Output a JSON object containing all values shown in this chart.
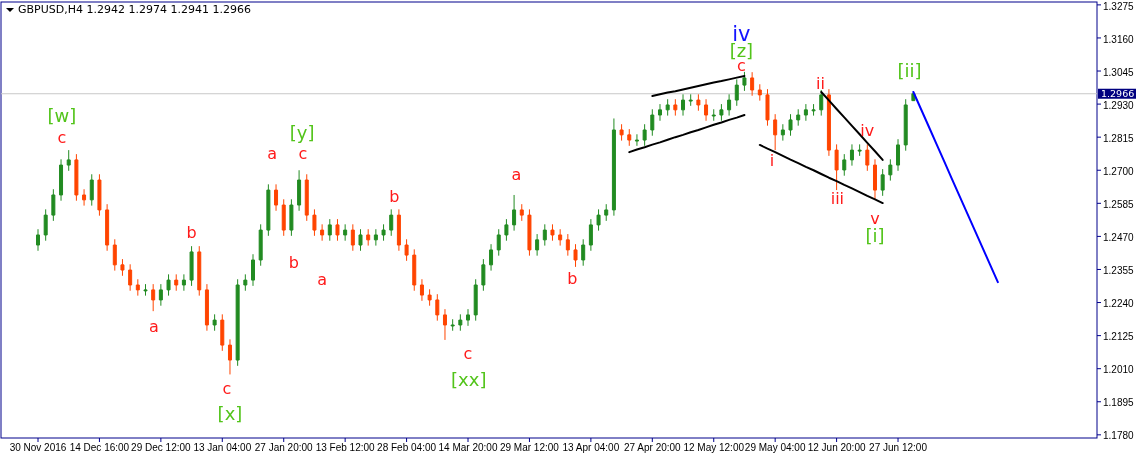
{
  "chart_data": {
    "type": "candlestick",
    "title": "GBPUSD,H4  1.2942 1.2974 1.2941 1.2966",
    "categories": [
      "30 Nov 2016",
      null,
      null,
      null,
      null,
      null,
      null,
      null,
      "14 Dec 16:00",
      null,
      null,
      null,
      null,
      null,
      null,
      null,
      "29 Dec 12:00",
      null,
      null,
      null,
      null,
      null,
      null,
      null,
      "13 Jan 04:00",
      null,
      null,
      null,
      null,
      null,
      null,
      null,
      "27 Jan 20:00",
      null,
      null,
      null,
      null,
      null,
      null,
      null,
      "13 Feb 12:00",
      null,
      null,
      null,
      null,
      null,
      null,
      null,
      "28 Feb 04:00",
      null,
      null,
      null,
      null,
      null,
      null,
      null,
      "14 Mar 20:00",
      null,
      null,
      null,
      null,
      null,
      null,
      null,
      "29 Mar 12:00",
      null,
      null,
      null,
      null,
      null,
      null,
      null,
      "13 Apr 04:00",
      null,
      null,
      null,
      null,
      null,
      null,
      null,
      "27 Apr 20:00",
      null,
      null,
      null,
      null,
      null,
      null,
      null,
      "12 May 12:00",
      null,
      null,
      null,
      null,
      null,
      null,
      null,
      "29 May 04:00",
      null,
      null,
      null,
      null,
      null,
      null,
      null,
      "12 Jun 20:00",
      null,
      null,
      null,
      null,
      null,
      null,
      null,
      "27 Jun 12:00",
      null,
      null,
      null,
      null,
      null,
      null,
      null,
      null,
      null,
      null,
      null,
      null,
      null,
      null,
      null,
      null,
      null,
      null,
      null,
      null,
      null,
      null,
      null,
      null,
      null
    ],
    "ohlc": [
      [
        1.244,
        1.2495,
        1.242,
        1.2475
      ],
      [
        1.2475,
        1.2564,
        1.2455,
        1.2544
      ],
      [
        1.2544,
        1.2634,
        1.2524,
        1.2614
      ],
      [
        1.2614,
        1.2738,
        1.2594,
        1.2718
      ],
      [
        1.2718,
        1.277,
        1.2698,
        1.2736
      ],
      [
        1.2736,
        1.2756,
        1.2594,
        1.2614
      ],
      [
        1.2614,
        1.2634,
        1.2577,
        1.2597
      ],
      [
        1.2597,
        1.2686,
        1.2577,
        1.2666
      ],
      [
        1.2666,
        1.2686,
        1.2542,
        1.2562
      ],
      [
        1.2562,
        1.2582,
        1.242,
        1.244
      ],
      [
        1.244,
        1.246,
        1.2351,
        1.2371
      ],
      [
        1.2371,
        1.2391,
        1.2333,
        1.2353
      ],
      [
        1.2353,
        1.2373,
        1.2281,
        1.2301
      ],
      [
        1.2301,
        1.2321,
        1.2264,
        1.2284
      ],
      [
        1.2284,
        1.2304,
        1.2264,
        1.2284
      ],
      [
        1.2284,
        1.2304,
        1.221,
        1.2249
      ],
      [
        1.2249,
        1.2304,
        1.2229,
        1.2284
      ],
      [
        1.2284,
        1.2338,
        1.2264,
        1.2318
      ],
      [
        1.2318,
        1.2338,
        1.2281,
        1.2301
      ],
      [
        1.2301,
        1.2338,
        1.2281,
        1.2318
      ],
      [
        1.2318,
        1.2436,
        1.2298,
        1.2416
      ],
      [
        1.2416,
        1.2436,
        1.2264,
        1.2284
      ],
      [
        1.2284,
        1.2304,
        1.2142,
        1.2162
      ],
      [
        1.2162,
        1.2199,
        1.2142,
        1.2179
      ],
      [
        1.2179,
        1.2199,
        1.2072,
        1.2092
      ],
      [
        1.2092,
        1.2112,
        1.199,
        1.204
      ],
      [
        1.204,
        1.2321,
        1.202,
        1.2301
      ],
      [
        1.2301,
        1.2338,
        1.2281,
        1.2318
      ],
      [
        1.2318,
        1.2408,
        1.2298,
        1.2388
      ],
      [
        1.2388,
        1.2512,
        1.2368,
        1.2492
      ],
      [
        1.2492,
        1.2651,
        1.2472,
        1.2631
      ],
      [
        1.2631,
        1.2651,
        1.2559,
        1.2579
      ],
      [
        1.2579,
        1.2599,
        1.2472,
        1.2492
      ],
      [
        1.2492,
        1.2599,
        1.2472,
        1.2579
      ],
      [
        1.2579,
        1.27,
        1.2559,
        1.2666
      ],
      [
        1.2666,
        1.2686,
        1.2524,
        1.2544
      ],
      [
        1.2544,
        1.2564,
        1.2472,
        1.2492
      ],
      [
        1.2492,
        1.2512,
        1.2455,
        1.2475
      ],
      [
        1.2475,
        1.253,
        1.2455,
        1.251
      ],
      [
        1.251,
        1.253,
        1.2455,
        1.2475
      ],
      [
        1.2475,
        1.2512,
        1.2455,
        1.2492
      ],
      [
        1.2492,
        1.2512,
        1.242,
        1.244
      ],
      [
        1.244,
        1.2495,
        1.242,
        1.2475
      ],
      [
        1.2475,
        1.2495,
        1.2438,
        1.2458
      ],
      [
        1.2458,
        1.2495,
        1.2438,
        1.2475
      ],
      [
        1.2475,
        1.2512,
        1.2455,
        1.2492
      ],
      [
        1.2492,
        1.2564,
        1.2472,
        1.2544
      ],
      [
        1.2544,
        1.2564,
        1.242,
        1.244
      ],
      [
        1.244,
        1.246,
        1.2385,
        1.2405
      ],
      [
        1.2405,
        1.2425,
        1.2281,
        1.2301
      ],
      [
        1.2301,
        1.2321,
        1.2246,
        1.2266
      ],
      [
        1.2266,
        1.2286,
        1.2229,
        1.2249
      ],
      [
        1.2249,
        1.2269,
        1.2177,
        1.2197
      ],
      [
        1.2197,
        1.2217,
        1.211,
        1.2162
      ],
      [
        1.2162,
        1.2182,
        1.2142,
        1.2162
      ],
      [
        1.2162,
        1.2199,
        1.2142,
        1.2179
      ],
      [
        1.2179,
        1.2217,
        1.2159,
        1.2197
      ],
      [
        1.2197,
        1.2321,
        1.2177,
        1.2301
      ],
      [
        1.2301,
        1.2391,
        1.2281,
        1.2371
      ],
      [
        1.2371,
        1.2443,
        1.2351,
        1.2423
      ],
      [
        1.2423,
        1.2495,
        1.2403,
        1.2475
      ],
      [
        1.2475,
        1.253,
        1.2455,
        1.251
      ],
      [
        1.251,
        1.2614,
        1.249,
        1.2562
      ],
      [
        1.2562,
        1.2582,
        1.2524,
        1.2544
      ],
      [
        1.2544,
        1.2564,
        1.2403,
        1.2423
      ],
      [
        1.2423,
        1.2478,
        1.2403,
        1.2458
      ],
      [
        1.2458,
        1.2512,
        1.2438,
        1.2492
      ],
      [
        1.2492,
        1.2512,
        1.2455,
        1.2475
      ],
      [
        1.2475,
        1.2495,
        1.2438,
        1.2458
      ],
      [
        1.2458,
        1.2478,
        1.2403,
        1.2423
      ],
      [
        1.2423,
        1.2443,
        1.2364,
        1.2388
      ],
      [
        1.2388,
        1.246,
        1.2368,
        1.244
      ],
      [
        1.244,
        1.253,
        1.242,
        1.251
      ],
      [
        1.251,
        1.2564,
        1.249,
        1.2544
      ],
      [
        1.2544,
        1.2582,
        1.2524,
        1.2562
      ],
      [
        1.2562,
        1.288,
        1.2542,
        1.284
      ],
      [
        1.284,
        1.286,
        1.2803,
        1.2823
      ],
      [
        1.2823,
        1.2843,
        1.2785,
        1.2805
      ],
      [
        1.2805,
        1.2825,
        1.2785,
        1.2805
      ],
      [
        1.2805,
        1.286,
        1.2785,
        1.284
      ],
      [
        1.284,
        1.2912,
        1.282,
        1.2892
      ],
      [
        1.2892,
        1.293,
        1.2872,
        1.291
      ],
      [
        1.291,
        1.2947,
        1.289,
        1.2927
      ],
      [
        1.2927,
        1.2947,
        1.289,
        1.291
      ],
      [
        1.291,
        1.2964,
        1.289,
        1.2944
      ],
      [
        1.2944,
        1.2964,
        1.2924,
        1.2944
      ],
      [
        1.2944,
        1.2964,
        1.2907,
        1.2927
      ],
      [
        1.2927,
        1.2947,
        1.2872,
        1.2892
      ],
      [
        1.2892,
        1.2912,
        1.2872,
        1.2892
      ],
      [
        1.2892,
        1.293,
        1.2872,
        1.291
      ],
      [
        1.291,
        1.2964,
        1.289,
        1.2944
      ],
      [
        1.2944,
        1.3016,
        1.2924,
        1.2996
      ],
      [
        1.2996,
        1.3042,
        1.2976,
        1.3021
      ],
      [
        1.3021,
        1.3041,
        1.2959,
        1.2979
      ],
      [
        1.2979,
        1.2999,
        1.2942,
        1.2962
      ],
      [
        1.2962,
        1.2982,
        1.2855,
        1.2875
      ],
      [
        1.2875,
        1.2895,
        1.277,
        1.2823
      ],
      [
        1.2823,
        1.286,
        1.2803,
        1.284
      ],
      [
        1.284,
        1.2895,
        1.282,
        1.2875
      ],
      [
        1.2875,
        1.2912,
        1.2855,
        1.2892
      ],
      [
        1.2892,
        1.293,
        1.2872,
        1.291
      ],
      [
        1.291,
        1.293,
        1.289,
        1.291
      ],
      [
        1.291,
        1.2979,
        1.289,
        1.2962
      ],
      [
        1.2962,
        1.2982,
        1.275,
        1.277
      ],
      [
        1.277,
        1.279,
        1.2631,
        1.2701
      ],
      [
        1.2701,
        1.2756,
        1.2681,
        1.2736
      ],
      [
        1.2736,
        1.279,
        1.2716,
        1.277
      ],
      [
        1.277,
        1.279,
        1.275,
        1.277
      ],
      [
        1.277,
        1.279,
        1.2698,
        1.2718
      ],
      [
        1.2718,
        1.2738,
        1.2597,
        1.2631
      ],
      [
        1.2631,
        1.2704,
        1.2611,
        1.2684
      ],
      [
        1.2684,
        1.2738,
        1.2664,
        1.2718
      ],
      [
        1.2718,
        1.2808,
        1.2698,
        1.2788
      ],
      [
        1.2788,
        1.2947,
        1.2768,
        1.2927
      ],
      [
        1.2942,
        1.2974,
        1.2941,
        1.2966
      ],
      null,
      null,
      null,
      null,
      null,
      null,
      null,
      null,
      null,
      null,
      null,
      null,
      null,
      null,
      null,
      null,
      null,
      null,
      null,
      null,
      null,
      null,
      null
    ],
    "series": [
      {
        "type": "line",
        "color": "#0000ff",
        "values": [
          null,
          null,
          null,
          null,
          null,
          null,
          null,
          null,
          null,
          null,
          null,
          null,
          null,
          null,
          null,
          null,
          null,
          null,
          null,
          null,
          null,
          null,
          null,
          null,
          null,
          null,
          null,
          null,
          null,
          null,
          null,
          null,
          null,
          null,
          null,
          null,
          null,
          null,
          null,
          null,
          null,
          null,
          null,
          null,
          null,
          null,
          null,
          null,
          null,
          null,
          null,
          null,
          null,
          null,
          null,
          null,
          null,
          null,
          null,
          null,
          null,
          null,
          null,
          null,
          null,
          null,
          null,
          null,
          null,
          null,
          null,
          null,
          null,
          null,
          null,
          null,
          null,
          null,
          null,
          null,
          null,
          null,
          null,
          null,
          null,
          null,
          null,
          null,
          null,
          null,
          null,
          null,
          null,
          null,
          null,
          null,
          null,
          null,
          null,
          null,
          null,
          null,
          null,
          null,
          null,
          null,
          null,
          null,
          null,
          null,
          null,
          null,
          null,
          null,
          1.2972,
          1.2912,
          1.2852,
          1.2792,
          1.2732,
          1.2671,
          1.2611,
          1.2551,
          1.2491,
          1.2431,
          1.2371,
          1.2311,
          null,
          null,
          null,
          null,
          null,
          null,
          null,
          null,
          null,
          null,
          null,
          null
        ]
      },
      {
        "type": "line",
        "color": "#000000",
        "values": [
          null,
          null,
          null,
          null,
          null,
          null,
          null,
          null,
          null,
          null,
          null,
          null,
          null,
          null,
          null,
          null,
          null,
          null,
          null,
          null,
          null,
          null,
          null,
          null,
          null,
          null,
          null,
          null,
          null,
          null,
          null,
          null,
          null,
          null,
          null,
          null,
          null,
          null,
          null,
          null,
          null,
          null,
          null,
          null,
          null,
          null,
          null,
          null,
          null,
          null,
          null,
          null,
          null,
          null,
          null,
          null,
          null,
          null,
          null,
          null,
          null,
          null,
          null,
          null,
          null,
          null,
          null,
          null,
          null,
          null,
          null,
          null,
          null,
          null,
          null,
          null,
          null,
          null,
          null,
          null,
          1.2958,
          1.2964,
          1.297,
          1.2975,
          1.2981,
          1.2987,
          1.2993,
          1.2999,
          1.3005,
          1.301,
          1.3016,
          1.3022,
          1.3028,
          null,
          null,
          null,
          null,
          null,
          null,
          null,
          null,
          null,
          null,
          null,
          null,
          null,
          null,
          null,
          null,
          null,
          null,
          null,
          null,
          null,
          null,
          null,
          null,
          null,
          null,
          null,
          null,
          null,
          null,
          null,
          null,
          null,
          null,
          null,
          null,
          null,
          null,
          null,
          null,
          null,
          null,
          null,
          null,
          null
        ]
      },
      {
        "type": "line",
        "color": "#000000",
        "values": [
          null,
          null,
          null,
          null,
          null,
          null,
          null,
          null,
          null,
          null,
          null,
          null,
          null,
          null,
          null,
          null,
          null,
          null,
          null,
          null,
          null,
          null,
          null,
          null,
          null,
          null,
          null,
          null,
          null,
          null,
          null,
          null,
          null,
          null,
          null,
          null,
          null,
          null,
          null,
          null,
          null,
          null,
          null,
          null,
          null,
          null,
          null,
          null,
          null,
          null,
          null,
          null,
          null,
          null,
          null,
          null,
          null,
          null,
          null,
          null,
          null,
          null,
          null,
          null,
          null,
          null,
          null,
          null,
          null,
          null,
          null,
          null,
          null,
          null,
          null,
          null,
          null,
          1.2763,
          1.2772,
          1.278,
          1.2789,
          1.2797,
          1.2806,
          1.2815,
          1.2823,
          1.2832,
          1.284,
          1.2849,
          1.2858,
          1.2866,
          1.2875,
          1.2883,
          1.2892,
          null,
          null,
          null,
          null,
          null,
          null,
          null,
          null,
          null,
          null,
          null,
          null,
          null,
          null,
          null,
          null,
          null,
          null,
          null,
          null,
          null,
          null,
          null,
          null,
          null,
          null,
          null,
          null,
          null,
          null,
          null,
          null,
          null,
          null,
          null,
          null,
          null,
          null,
          null,
          null,
          null,
          null,
          null,
          null,
          null
        ]
      },
      {
        "type": "line",
        "color": "#000000",
        "values": [
          null,
          null,
          null,
          null,
          null,
          null,
          null,
          null,
          null,
          null,
          null,
          null,
          null,
          null,
          null,
          null,
          null,
          null,
          null,
          null,
          null,
          null,
          null,
          null,
          null,
          null,
          null,
          null,
          null,
          null,
          null,
          null,
          null,
          null,
          null,
          null,
          null,
          null,
          null,
          null,
          null,
          null,
          null,
          null,
          null,
          null,
          null,
          null,
          null,
          null,
          null,
          null,
          null,
          null,
          null,
          null,
          null,
          null,
          null,
          null,
          null,
          null,
          null,
          null,
          null,
          null,
          null,
          null,
          null,
          null,
          null,
          null,
          null,
          null,
          null,
          null,
          null,
          null,
          null,
          null,
          null,
          null,
          null,
          null,
          null,
          null,
          null,
          null,
          null,
          null,
          null,
          null,
          null,
          null,
          null,
          null,
          null,
          null,
          null,
          null,
          null,
          null,
          1.2972,
          1.2943,
          1.2913,
          1.2884,
          1.2854,
          1.2825,
          1.2795,
          1.2766,
          1.2736,
          null,
          null,
          null,
          null,
          null,
          null,
          null,
          null,
          null,
          null,
          null,
          null,
          null,
          null,
          null,
          null,
          null,
          null,
          null,
          null,
          null,
          null,
          null,
          null,
          null,
          null,
          null
        ]
      },
      {
        "type": "line",
        "color": "#000000",
        "values": [
          null,
          null,
          null,
          null,
          null,
          null,
          null,
          null,
          null,
          null,
          null,
          null,
          null,
          null,
          null,
          null,
          null,
          null,
          null,
          null,
          null,
          null,
          null,
          null,
          null,
          null,
          null,
          null,
          null,
          null,
          null,
          null,
          null,
          null,
          null,
          null,
          null,
          null,
          null,
          null,
          null,
          null,
          null,
          null,
          null,
          null,
          null,
          null,
          null,
          null,
          null,
          null,
          null,
          null,
          null,
          null,
          null,
          null,
          null,
          null,
          null,
          null,
          null,
          null,
          null,
          null,
          null,
          null,
          null,
          null,
          null,
          null,
          null,
          null,
          null,
          null,
          null,
          null,
          null,
          null,
          null,
          null,
          null,
          null,
          null,
          null,
          null,
          null,
          null,
          null,
          null,
          null,
          null,
          null,
          1.2788,
          1.2775,
          1.2763,
          1.275,
          1.2737,
          1.2725,
          1.2712,
          1.27,
          1.2687,
          1.2674,
          1.2662,
          1.2649,
          1.2637,
          1.2624,
          1.2611,
          1.2599,
          1.2586,
          null,
          null,
          null,
          null,
          null,
          null,
          null,
          null,
          null,
          null,
          null,
          null,
          null,
          null,
          null,
          null,
          null,
          null,
          null,
          null,
          null,
          null,
          null,
          null,
          null,
          null,
          null
        ]
      }
    ],
    "ylim": [
      1.1769,
      1.3285
    ],
    "yticks": [
      1.3275,
      {
        "value": 1.316,
        "label": "1.3160"
      },
      1.3045,
      {
        "value": 1.293,
        "label": "1.2930"
      },
      1.2815,
      {
        "value": 1.27,
        "label": "1.2700"
      },
      1.2585,
      {
        "value": 1.247,
        "label": "1.2470"
      },
      1.2355,
      {
        "value": 1.224,
        "label": "1.2240"
      },
      1.2125,
      {
        "value": 1.201,
        "label": "1.2010"
      },
      1.1895,
      {
        "value": 1.178,
        "label": "1.1780"
      }
    ],
    "ref_lines": [
      {
        "axis": "y",
        "value": 1.2966,
        "label": "1.2966",
        "color": "#c8c8c8"
      }
    ],
    "annotations": [
      "[w]",
      "c",
      "a",
      "b",
      "c",
      "[x]",
      "a",
      "[y]",
      "c",
      "b",
      "a",
      "b",
      "a",
      "c",
      "[xx]",
      "b",
      "iv",
      "[z]",
      "c",
      "ii",
      "i",
      "iv",
      "iii",
      "v",
      "[i]",
      "[ii]"
    ]
  }
}
